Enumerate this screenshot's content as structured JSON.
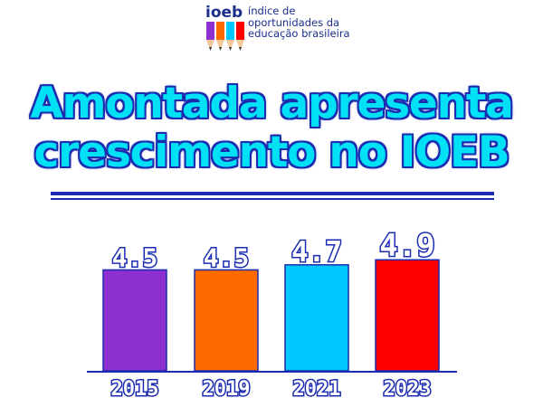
{
  "logo": {
    "letters": "ioeb",
    "text": "índice de\noportunidades da\neducação brasileira"
  },
  "headline": {
    "line1": "Amontada apresenta",
    "line2": "crescimento no IOEB"
  },
  "colors": {
    "headline_fill": "#00e1f5",
    "outline": "#1b2cb0",
    "bar_2015": "#8e2fd0",
    "bar_2019": "#ff6a00",
    "bar_2021": "#00c8ff",
    "bar_2023": "#ff0000"
  },
  "chart_data": {
    "type": "bar",
    "categories": [
      "2015",
      "2019",
      "2021",
      "2023"
    ],
    "values": [
      4.5,
      4.5,
      4.7,
      4.9
    ],
    "value_labels": [
      "4.5",
      "4.5",
      "4.7",
      "4.9"
    ],
    "colors": [
      "#8e2fd0",
      "#ff6a00",
      "#00c8ff",
      "#ff0000"
    ],
    "title": "",
    "xlabel": "",
    "ylabel": "",
    "grid": false,
    "legend": "none"
  }
}
